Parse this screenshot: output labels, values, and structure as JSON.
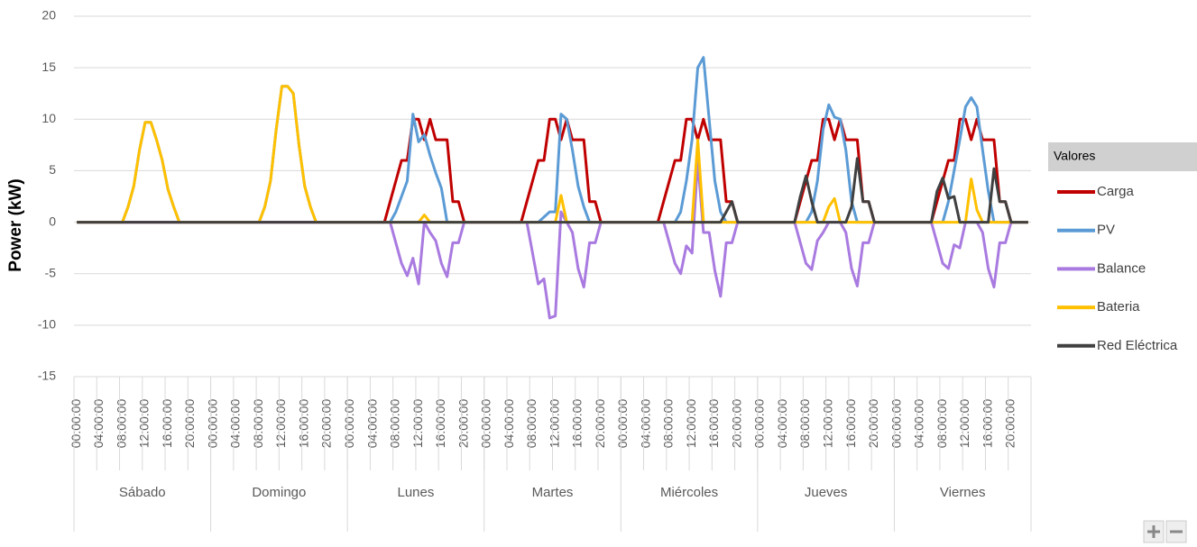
{
  "chart_data": {
    "type": "line",
    "y_label": "Power (kW)",
    "categories": [
      "00:00:00",
      null,
      null,
      null,
      "04:00:00",
      null,
      null,
      null,
      "08:00:00",
      null,
      null,
      null,
      "12:00:00",
      null,
      null,
      null,
      "16:00:00",
      null,
      null,
      null,
      "20:00:00",
      null,
      null,
      null,
      "00:00:00",
      null,
      null,
      null,
      "04:00:00",
      null,
      null,
      null,
      "08:00:00",
      null,
      null,
      null,
      "12:00:00",
      null,
      null,
      null,
      "16:00:00",
      null,
      null,
      null,
      "20:00:00",
      null,
      null,
      null,
      "00:00:00",
      null,
      null,
      null,
      "04:00:00",
      null,
      null,
      null,
      "08:00:00",
      null,
      null,
      null,
      "12:00:00",
      null,
      null,
      null,
      "16:00:00",
      null,
      null,
      null,
      "20:00:00",
      null,
      null,
      null,
      "00:00:00",
      null,
      null,
      null,
      "04:00:00",
      null,
      null,
      null,
      "08:00:00",
      null,
      null,
      null,
      "12:00:00",
      null,
      null,
      null,
      "16:00:00",
      null,
      null,
      null,
      "20:00:00",
      null,
      null,
      null,
      "00:00:00",
      null,
      null,
      null,
      "04:00:00",
      null,
      null,
      null,
      "08:00:00",
      null,
      null,
      null,
      "12:00:00",
      null,
      null,
      null,
      "16:00:00",
      null,
      null,
      null,
      "20:00:00",
      null,
      null,
      null,
      "00:00:00",
      null,
      null,
      null,
      "04:00:00",
      null,
      null,
      null,
      "08:00:00",
      null,
      null,
      null,
      "12:00:00",
      null,
      null,
      null,
      "16:00:00",
      null,
      null,
      null,
      "20:00:00",
      null,
      null,
      null,
      "00:00:00",
      null,
      null,
      null,
      "04:00:00",
      null,
      null,
      null,
      "08:00:00",
      null,
      null,
      null,
      "12:00:00",
      null,
      null,
      null,
      "16:00:00",
      null,
      null,
      null,
      "20:00:00",
      null,
      null,
      null
    ],
    "groups": [
      "Sábado",
      "Domingo",
      "Lunes",
      "Martes",
      "Miércoles",
      "Jueves",
      "Viernes"
    ],
    "ylim": [
      -15,
      20
    ],
    "yticks": [
      -15,
      -10,
      -5,
      0,
      5,
      10,
      15,
      20
    ],
    "grid": true,
    "legend_title": "Valores",
    "legend": "right",
    "series": [
      {
        "name": "Carga",
        "color": "#c00000",
        "values": [
          0,
          0,
          0,
          0,
          0,
          0,
          0,
          0,
          0,
          0,
          0,
          0,
          0,
          0,
          0,
          0,
          0,
          0,
          0,
          0,
          0,
          0,
          0,
          0,
          0,
          0,
          0,
          0,
          0,
          0,
          0,
          0,
          0,
          0,
          0,
          0,
          0,
          0,
          0,
          0,
          0,
          0,
          0,
          0,
          0,
          0,
          0,
          0,
          0,
          0,
          0,
          0,
          0,
          0,
          0,
          2,
          4,
          6,
          6,
          10,
          10,
          8,
          10,
          8,
          8,
          8,
          2,
          2,
          0,
          0,
          0,
          0,
          0,
          0,
          0,
          0,
          0,
          0,
          0,
          2,
          4,
          6,
          6,
          10,
          10,
          8,
          10,
          8,
          8,
          8,
          2,
          2,
          0,
          0,
          0,
          0,
          0,
          0,
          0,
          0,
          0,
          0,
          0,
          2,
          4,
          6,
          6,
          10,
          10,
          8,
          10,
          8,
          8,
          8,
          2,
          2,
          0,
          0,
          0,
          0,
          0,
          0,
          0,
          0,
          0,
          0,
          0,
          2,
          4,
          6,
          6,
          10,
          10,
          8,
          10,
          8,
          8,
          8,
          2,
          2,
          0,
          0,
          0,
          0,
          0,
          0,
          0,
          0,
          0,
          0,
          0,
          2,
          4,
          6,
          6,
          10,
          10,
          8,
          10,
          8,
          8,
          8,
          2,
          2,
          0,
          0,
          0,
          0
        ]
      },
      {
        "name": "PV",
        "color": "#5b9bd5",
        "values": [
          0,
          0,
          0,
          0,
          0,
          0,
          0,
          0,
          0,
          1.5,
          3.5,
          7,
          9.7,
          9.7,
          8,
          6,
          3.2,
          1.5,
          0,
          0,
          0,
          0,
          0,
          0,
          0,
          0,
          0,
          0,
          0,
          0,
          0,
          0,
          0,
          1.5,
          4,
          9,
          13.2,
          13.2,
          12.5,
          7.5,
          3.5,
          1.5,
          0,
          0,
          0,
          0,
          0,
          0,
          0,
          0,
          0,
          0,
          0,
          0,
          0,
          0,
          1,
          2.5,
          4,
          10.5,
          7.8,
          8.5,
          6.5,
          4.8,
          3.3,
          0,
          0,
          0,
          0,
          0,
          0,
          0,
          0,
          0,
          0,
          0,
          0,
          0,
          0,
          0,
          0,
          0,
          0.5,
          1,
          1,
          10.5,
          10,
          7,
          3.5,
          1.5,
          0,
          0,
          0,
          0,
          0,
          0,
          0,
          0,
          0,
          0,
          0,
          0,
          0,
          0,
          0,
          0,
          1,
          4,
          8,
          15,
          16,
          10,
          4,
          1,
          0,
          0,
          0,
          0,
          0,
          0,
          0,
          0,
          0,
          0,
          0,
          0,
          0,
          0,
          0,
          1,
          4,
          9,
          11.4,
          10.2,
          10,
          7,
          2,
          0,
          0,
          0,
          0,
          0,
          0,
          0,
          0,
          0,
          0,
          0,
          0,
          0,
          0,
          0,
          0,
          2,
          5,
          8,
          11.2,
          12.1,
          11.2,
          7,
          3,
          0,
          0,
          0,
          0,
          0,
          0,
          0
        ]
      },
      {
        "name": "Balance",
        "color": "#a97ae0",
        "values": [
          0,
          0,
          0,
          0,
          0,
          0,
          0,
          0,
          0,
          0,
          0,
          0,
          0,
          0,
          0,
          0,
          0,
          0,
          0,
          0,
          0,
          0,
          0,
          0,
          0,
          0,
          0,
          0,
          0,
          0,
          0,
          0,
          0,
          0,
          0,
          0,
          0,
          0,
          0,
          0,
          0,
          0,
          0,
          0,
          0,
          0,
          0,
          0,
          0,
          0,
          0,
          0,
          0,
          0,
          0,
          0,
          -2,
          -4,
          -5.2,
          -3.5,
          -6,
          0,
          -1,
          -1.8,
          -4,
          -5.3,
          -2,
          -2,
          0,
          0,
          0,
          0,
          0,
          0,
          0,
          0,
          0,
          0,
          0,
          0,
          -3,
          -6,
          -5.5,
          -9.3,
          -9.1,
          1,
          0,
          -1,
          -4.5,
          -6.3,
          -2,
          -2,
          0,
          0,
          0,
          0,
          0,
          0,
          0,
          0,
          0,
          0,
          0,
          0,
          -2,
          -4,
          -5,
          -2.3,
          -3,
          6,
          -1,
          -1,
          -4.7,
          -7.2,
          -2,
          -2,
          0,
          0,
          0,
          0,
          0,
          0,
          0,
          0,
          0,
          0,
          0,
          -2,
          -4,
          -4.6,
          -1.8,
          -1,
          0,
          0,
          0,
          -1,
          -4.5,
          -6.2,
          -2,
          -2,
          0,
          0,
          0,
          0,
          0,
          0,
          0,
          0,
          0,
          0,
          0,
          -2,
          -4,
          -4.5,
          -2.2,
          -2.5,
          0,
          0,
          0,
          -1,
          -4.5,
          -6.3,
          -2,
          -2,
          0,
          0,
          0,
          0
        ]
      },
      {
        "name": "Bateria",
        "color": "#ffc000",
        "values": [
          0,
          0,
          0,
          0,
          0,
          0,
          0,
          0,
          0,
          1.5,
          3.5,
          7,
          9.7,
          9.7,
          8,
          6,
          3.2,
          1.5,
          0,
          0,
          0,
          0,
          0,
          0,
          0,
          0,
          0,
          0,
          0,
          0,
          0,
          0,
          0,
          1.5,
          4,
          9,
          13.2,
          13.2,
          12.5,
          7.5,
          3.5,
          1.5,
          0,
          0,
          0,
          0,
          0,
          0,
          0,
          0,
          0,
          0,
          0,
          0,
          0,
          0,
          0,
          0,
          0,
          0,
          0,
          0.7,
          0,
          0,
          0,
          0,
          0,
          0,
          0,
          0,
          0,
          0,
          0,
          0,
          0,
          0,
          0,
          0,
          0,
          0,
          0,
          0,
          0,
          0,
          0,
          2.6,
          0,
          0,
          0,
          0,
          0,
          0,
          0,
          0,
          0,
          0,
          0,
          0,
          0,
          0,
          0,
          0,
          0,
          0,
          0,
          0,
          0,
          0,
          0,
          8,
          0,
          0,
          0,
          0,
          0,
          0,
          0,
          0,
          0,
          0,
          0,
          0,
          0,
          0,
          0,
          0,
          0,
          0,
          0,
          0,
          0,
          0,
          1.5,
          2.3,
          0,
          0,
          0,
          0,
          0,
          0,
          0,
          0,
          0,
          0,
          0,
          0,
          0,
          0,
          0,
          0,
          0,
          0,
          0,
          0,
          0,
          0,
          0,
          4.2,
          1.2,
          0,
          0,
          0,
          0,
          0,
          0,
          0,
          0,
          0
        ]
      },
      {
        "name": "Red Eléctrica",
        "color": "#404040",
        "values": [
          0,
          0,
          0,
          0,
          0,
          0,
          0,
          0,
          0,
          0,
          0,
          0,
          0,
          0,
          0,
          0,
          0,
          0,
          0,
          0,
          0,
          0,
          0,
          0,
          0,
          0,
          0,
          0,
          0,
          0,
          0,
          0,
          0,
          0,
          0,
          0,
          0,
          0,
          0,
          0,
          0,
          0,
          0,
          0,
          0,
          0,
          0,
          0,
          0,
          0,
          0,
          0,
          0,
          0,
          0,
          0,
          0,
          0,
          0,
          0,
          0,
          0,
          0,
          0,
          0,
          0,
          0,
          0,
          0,
          0,
          0,
          0,
          0,
          0,
          0,
          0,
          0,
          0,
          0,
          0,
          0,
          0,
          0,
          0,
          0,
          0,
          0,
          0,
          0,
          0,
          0,
          0,
          0,
          0,
          0,
          0,
          0,
          0,
          0,
          0,
          0,
          0,
          0,
          0,
          0,
          0,
          0,
          0,
          0,
          0,
          0,
          0,
          0,
          0,
          1,
          2,
          0,
          0,
          0,
          0,
          0,
          0,
          0,
          0,
          0,
          0,
          0,
          2.5,
          4.5,
          2,
          0,
          0,
          0,
          0,
          0,
          0,
          1.5,
          6.2,
          2,
          2,
          0,
          0,
          0,
          0,
          0,
          0,
          0,
          0,
          0,
          0,
          0,
          3,
          4.3,
          2.3,
          2.5,
          0,
          0,
          0,
          0,
          0,
          0,
          5.2,
          2,
          2,
          0,
          0,
          0,
          0
        ]
      }
    ]
  }
}
